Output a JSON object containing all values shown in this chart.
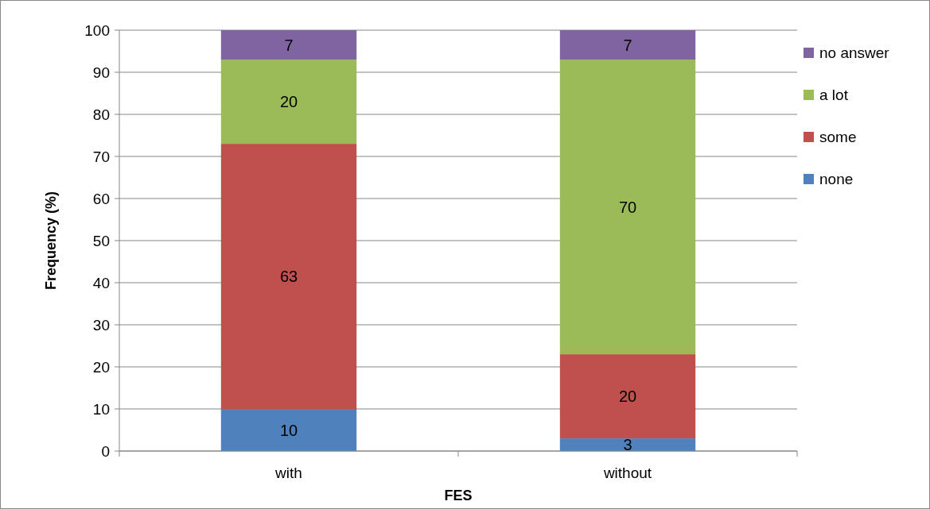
{
  "chart_data": {
    "type": "bar",
    "stacked": true,
    "xlabel": "FES",
    "ylabel": "Frequency (%)",
    "categories": [
      "with",
      "without"
    ],
    "series": [
      {
        "name": "none",
        "color": "#4f81bd",
        "values": [
          10,
          3
        ]
      },
      {
        "name": "some",
        "color": "#c0504d",
        "values": [
          63,
          20
        ]
      },
      {
        "name": "a lot",
        "color": "#9bbb59",
        "values": [
          20,
          70
        ]
      },
      {
        "name": "no answer",
        "color": "#8064a2",
        "values": [
          7,
          7
        ]
      }
    ],
    "ylim": [
      0,
      100
    ],
    "yticks": [
      0,
      10,
      20,
      30,
      40,
      50,
      60,
      70,
      80,
      90,
      100
    ],
    "grid": "y",
    "legend": "right",
    "data_labels": true
  }
}
